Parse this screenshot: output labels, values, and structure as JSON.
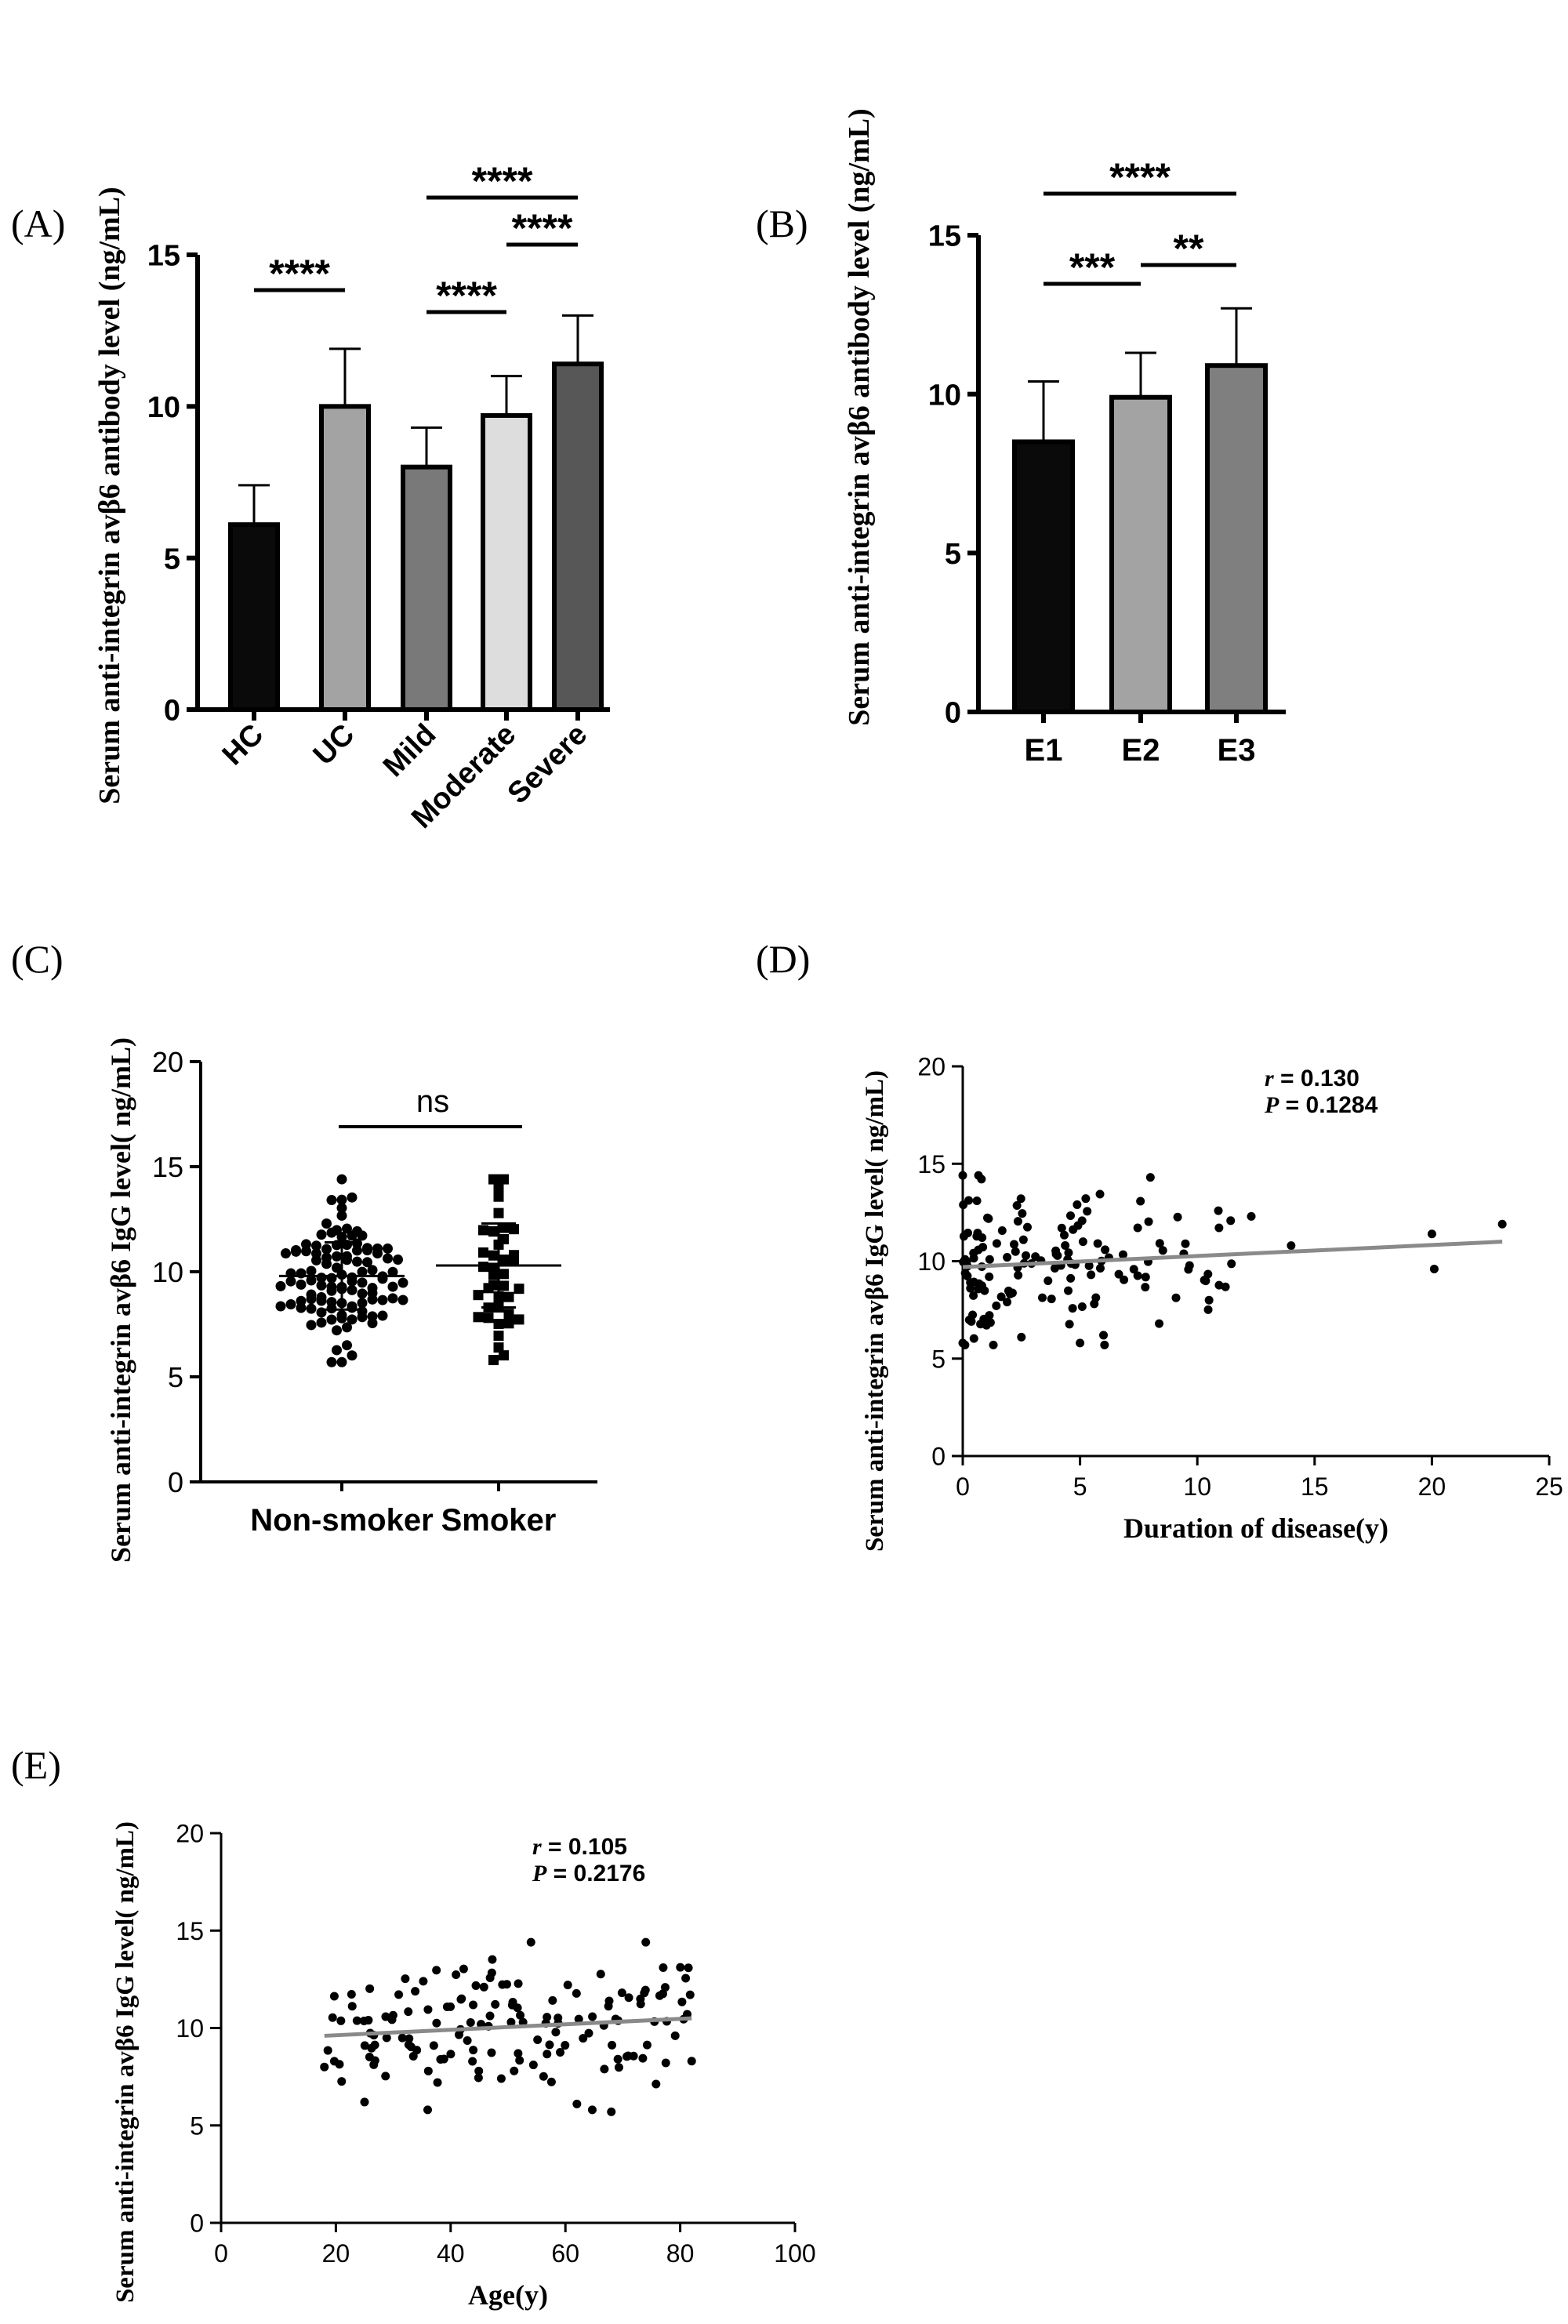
{
  "panel_labels": [
    "(A)",
    "(B)",
    "(C)",
    "(D)",
    "(E)"
  ],
  "colors": {
    "ink": "#000000",
    "regression": "#8a8a8a"
  },
  "chart_data": [
    {
      "panel": "(A)",
      "type": "bar",
      "ylabel": "Serum anti-integrin avβ6 antibody level (ng/mL)",
      "ylim": [
        0,
        15
      ],
      "yticks": [
        "0",
        "5",
        "10",
        "15"
      ],
      "categories": [
        "HC",
        "UC",
        "Mild",
        "Moderate",
        "Severe"
      ],
      "values": [
        6.1,
        10.0,
        8.0,
        9.7,
        11.4
      ],
      "errors": [
        1.3,
        1.9,
        1.3,
        1.3,
        1.6
      ],
      "fills": [
        "#0a0a0a",
        "#a3a3a3",
        "#797979",
        "#dddddd",
        "#575757"
      ],
      "comparisons": [
        {
          "from": 0,
          "to": 1,
          "label": "****"
        },
        {
          "from": 2,
          "to": 3,
          "label": "****"
        },
        {
          "from": 3,
          "to": 4,
          "label": "****"
        },
        {
          "from": 2,
          "to": 4,
          "label": "****"
        }
      ]
    },
    {
      "panel": "(B)",
      "type": "bar",
      "ylabel": "Serum anti-integrin avβ6 antibody level (ng/mL)",
      "ylim": [
        0,
        15
      ],
      "yticks": [
        "0",
        "5",
        "10",
        "15"
      ],
      "categories": [
        "E1",
        "E2",
        "E3"
      ],
      "values": [
        8.5,
        9.9,
        10.9
      ],
      "errors": [
        1.9,
        1.4,
        1.8
      ],
      "fills": [
        "#0a0a0a",
        "#a3a3a3",
        "#7f7f7f"
      ],
      "comparisons": [
        {
          "from": 0,
          "to": 1,
          "label": "***"
        },
        {
          "from": 1,
          "to": 2,
          "label": "**"
        },
        {
          "from": 0,
          "to": 2,
          "label": "****"
        }
      ]
    },
    {
      "panel": "(C)",
      "type": "scatter",
      "subtype": "dot-plot",
      "ylabel": "Serum anti-integrin avβ6 IgG level( ng/mL)",
      "ylim": [
        0,
        20
      ],
      "yticks": [
        "0",
        "5",
        "10",
        "15",
        "20"
      ],
      "categories": [
        "Non-smoker",
        "Smoker"
      ],
      "series": [
        {
          "name": "Non-smoker",
          "n": 110,
          "mean": 9.8,
          "sd": 1.6,
          "min": 5.7,
          "max": 14.4
        },
        {
          "name": "Smoker",
          "n": 42,
          "mean": 10.3,
          "sd": 2.0,
          "min": 5.8,
          "max": 14.4
        }
      ],
      "comparisons": [
        {
          "from": 0,
          "to": 1,
          "label": "ns"
        }
      ]
    },
    {
      "panel": "(D)",
      "type": "scatter",
      "ylabel": "Serum anti-integrin avβ6 IgG level( ng/mL)",
      "xlabel": "Duration of disease(y)",
      "xlim": [
        0,
        25
      ],
      "ylim": [
        0,
        20
      ],
      "xticks": [
        "0",
        "5",
        "10",
        "15",
        "20",
        "25"
      ],
      "yticks": [
        "0",
        "5",
        "10",
        "15",
        "20"
      ],
      "n": 150,
      "regression": {
        "x": [
          0,
          23
        ],
        "y": [
          9.7,
          11.0
        ]
      },
      "r_symbol": "r",
      "r_text": " = 0.130",
      "p_symbol": "P",
      "p_text": " = 0.1284"
    },
    {
      "panel": "(E)",
      "type": "scatter",
      "ylabel": "Serum anti-integrin avβ6 IgG level( ng/mL)",
      "xlabel": "Age(y)",
      "xlim": [
        0,
        100
      ],
      "ylim": [
        0,
        20
      ],
      "xticks": [
        "0",
        "20",
        "40",
        "60",
        "80",
        "100"
      ],
      "yticks": [
        "0",
        "5",
        "10",
        "15",
        "20"
      ],
      "n": 150,
      "regression": {
        "x": [
          18,
          82
        ],
        "y": [
          9.6,
          10.5
        ]
      },
      "r_symbol": "r",
      "r_text": " = 0.105",
      "p_symbol": "P",
      "p_text": " = 0.2176"
    }
  ]
}
